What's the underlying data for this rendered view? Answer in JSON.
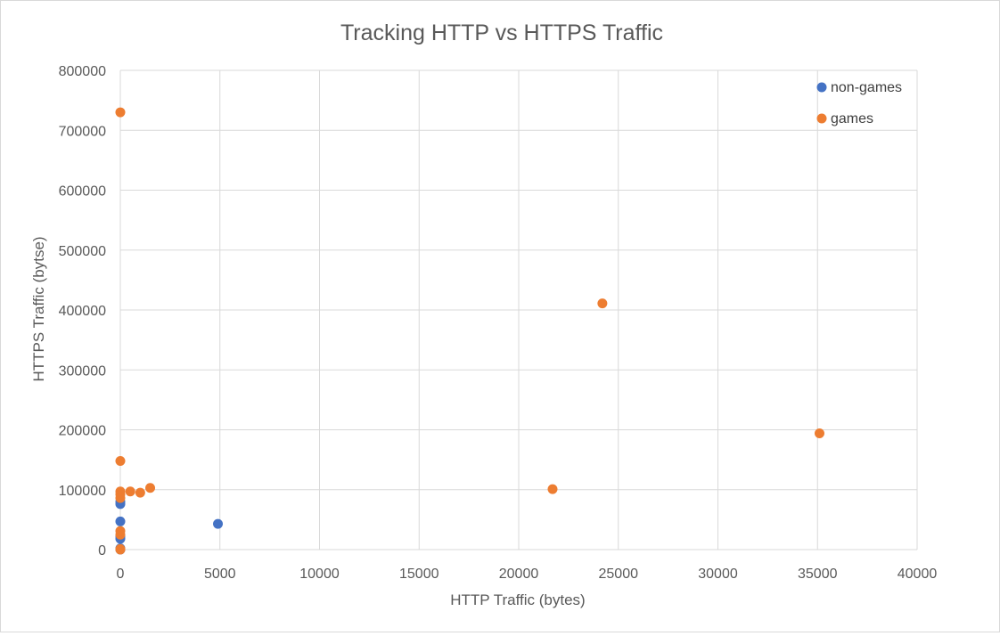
{
  "chart_data": {
    "type": "scatter",
    "title": "Tracking HTTP vs HTTPS Traffic",
    "xlabel": "HTTP Traffic (bytes)",
    "ylabel": "HTTPS Traffic (bytse)",
    "xlim": [
      0,
      40000
    ],
    "ylim": [
      0,
      800000
    ],
    "xticks": [
      0,
      5000,
      10000,
      15000,
      20000,
      25000,
      30000,
      35000,
      40000
    ],
    "yticks": [
      0,
      100000,
      200000,
      300000,
      400000,
      500000,
      600000,
      700000,
      800000
    ],
    "grid": true,
    "legend_position": "top-right",
    "series": [
      {
        "name": "non-games",
        "color": "#4472C4",
        "points": [
          [
            0,
            0
          ],
          [
            0,
            2000
          ],
          [
            0,
            18000
          ],
          [
            0,
            22000
          ],
          [
            0,
            47000
          ],
          [
            0,
            76000
          ],
          [
            0,
            80000
          ],
          [
            4900,
            43000
          ]
        ]
      },
      {
        "name": "games",
        "color": "#ED7D31",
        "points": [
          [
            0,
            730000
          ],
          [
            0,
            148000
          ],
          [
            0,
            97000
          ],
          [
            0,
            92000
          ],
          [
            0,
            86000
          ],
          [
            0,
            31000
          ],
          [
            0,
            25000
          ],
          [
            0,
            1000
          ],
          [
            0,
            0
          ],
          [
            500,
            97000
          ],
          [
            1000,
            95000
          ],
          [
            1500,
            103000
          ],
          [
            21700,
            101000
          ],
          [
            24200,
            411000
          ],
          [
            35100,
            194000
          ]
        ]
      }
    ]
  }
}
